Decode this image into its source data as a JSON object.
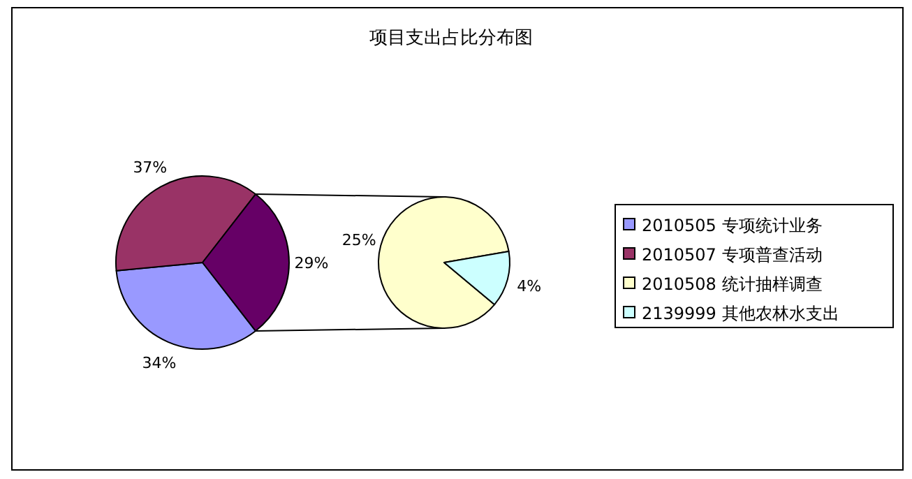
{
  "chart_data": [
    {
      "type": "pie",
      "categories": [
        "2010505  专项统计业务",
        "2010507  专项普查活动",
        null
      ],
      "values": [
        34,
        37,
        29
      ],
      "colors": [
        "#9999ff",
        "#993366",
        "#660066"
      ],
      "value_labels": [
        "34%",
        "37%",
        "29%"
      ],
      "legend": "right"
    },
    {
      "type": "pie",
      "title": "项目支出占比分布图",
      "categories": [
        "2010508  统计抽样调查",
        "2139999  其他农林水支出"
      ],
      "values": [
        25,
        4
      ],
      "colors": [
        "#ffffcc",
        "#ccffff"
      ],
      "value_labels": [
        "25%",
        "4%"
      ],
      "legend": "right"
    }
  ]
}
